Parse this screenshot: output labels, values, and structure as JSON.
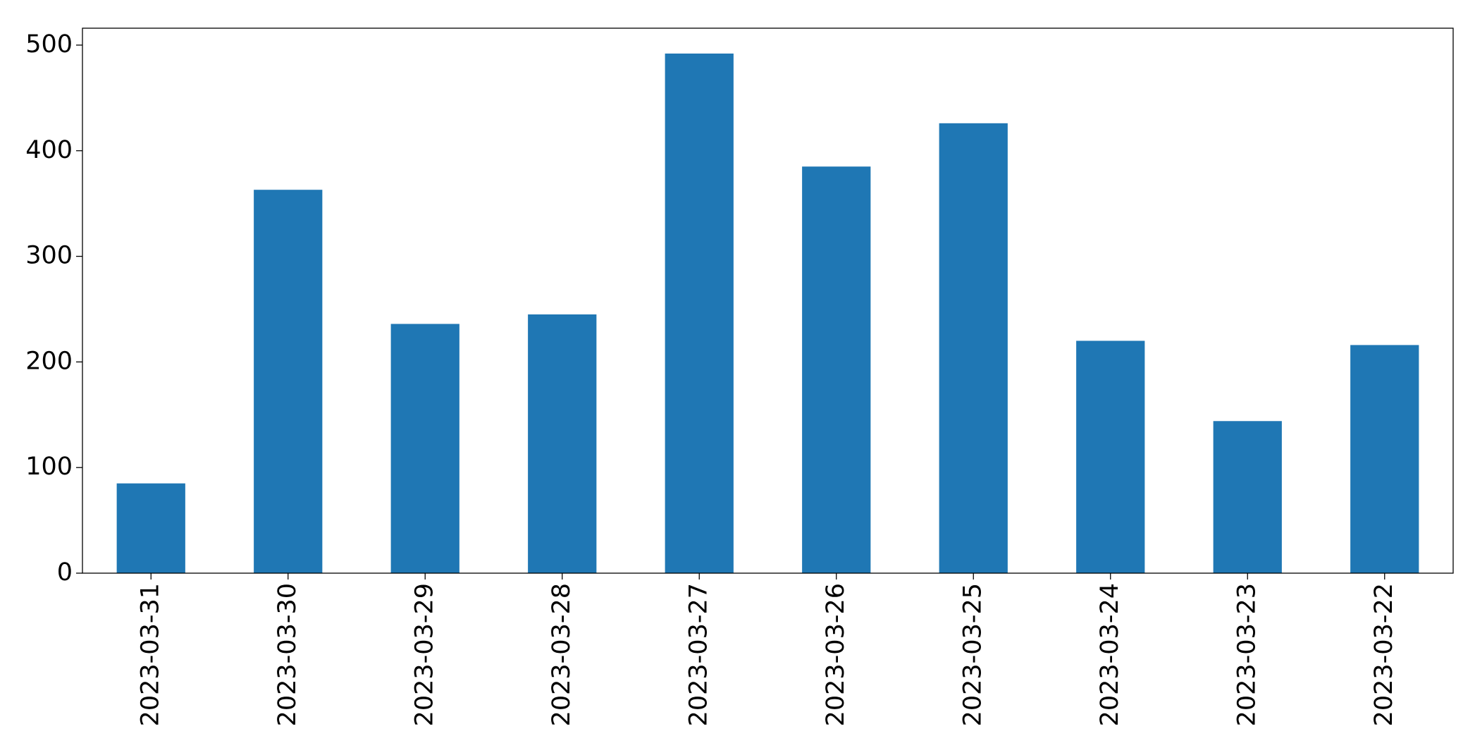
{
  "chart_data": {
    "type": "bar",
    "categories": [
      "2023-03-31",
      "2023-03-30",
      "2023-03-29",
      "2023-03-28",
      "2023-03-27",
      "2023-03-26",
      "2023-03-25",
      "2023-03-24",
      "2023-03-23",
      "2023-03-22"
    ],
    "values": [
      85,
      363,
      236,
      245,
      492,
      385,
      426,
      220,
      144,
      216
    ],
    "color": "#1f77b4",
    "ylim": [
      0,
      516
    ],
    "yticks": [
      0,
      100,
      200,
      300,
      400,
      500
    ],
    "grid": false
  }
}
